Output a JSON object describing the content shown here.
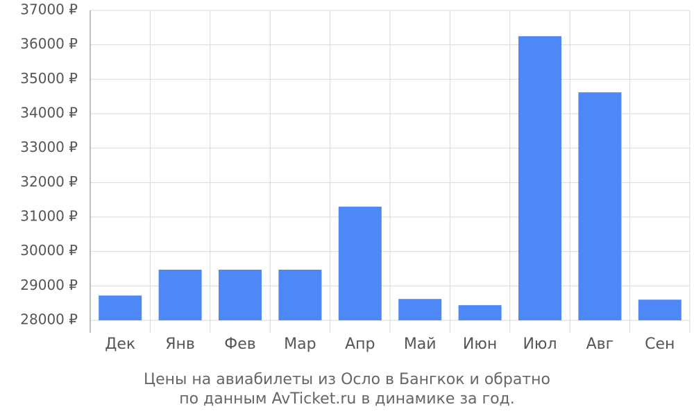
{
  "chart_data": {
    "type": "bar",
    "title": [
      "Цены на авиабилеты из Осло в Бангкок и обратно",
      "по данным AvTicket.ru в динамике за год."
    ],
    "categories": [
      "Дек",
      "Янв",
      "Фев",
      "Мар",
      "Апр",
      "Май",
      "Июн",
      "Июл",
      "Авг",
      "Сен"
    ],
    "values": [
      28720,
      29470,
      29470,
      29470,
      31300,
      28620,
      28440,
      36250,
      34620,
      28600
    ],
    "color": "#4e88f7",
    "ylim": [
      28000,
      37000
    ],
    "yticks": [
      {
        "value": 28000,
        "label": "28000 ₽"
      },
      {
        "value": 29000,
        "label": "29000 ₽"
      },
      {
        "value": 30000,
        "label": "30000 ₽"
      },
      {
        "value": 31000,
        "label": "31000 ₽"
      },
      {
        "value": 32000,
        "label": "32000 ₽"
      },
      {
        "value": 33000,
        "label": "33000 ₽"
      },
      {
        "value": 34000,
        "label": "34000 ₽"
      },
      {
        "value": 35000,
        "label": "35000 ₽"
      },
      {
        "value": 36000,
        "label": "36000 ₽"
      },
      {
        "value": 37000,
        "label": "37000 ₽"
      }
    ],
    "grid": true
  }
}
